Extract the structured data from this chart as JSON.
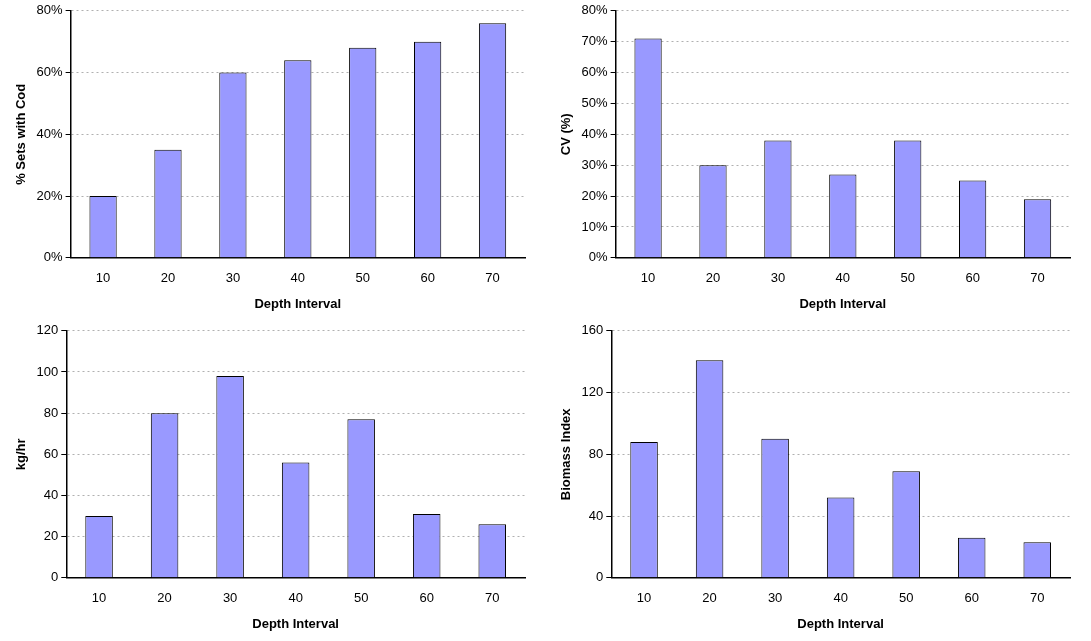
{
  "chart_data": [
    {
      "type": "bar",
      "xlabel": "Depth Interval",
      "ylabel": "% Sets with Cod",
      "categories": [
        "10",
        "20",
        "30",
        "40",
        "50",
        "60",
        "70"
      ],
      "values": [
        20,
        35,
        60,
        64,
        68,
        70,
        76
      ],
      "color": "#9999ff",
      "ylim": [
        0,
        80
      ],
      "yticks": [
        {
          "value": 0,
          "label": "0%"
        },
        {
          "value": 20,
          "label": "20%"
        },
        {
          "value": 40,
          "label": "40%"
        },
        {
          "value": 60,
          "label": "60%"
        },
        {
          "value": 80,
          "label": "80%"
        }
      ],
      "grid": "y",
      "legend": false
    },
    {
      "type": "bar",
      "xlabel": "Depth Interval",
      "ylabel": "CV (%)",
      "categories": [
        "10",
        "20",
        "30",
        "40",
        "50",
        "60",
        "70"
      ],
      "values": [
        71,
        30,
        38,
        27,
        38,
        25,
        19
      ],
      "color": "#9999ff",
      "ylim": [
        0,
        80
      ],
      "yticks": [
        {
          "value": 0,
          "label": "0%"
        },
        {
          "value": 10,
          "label": "10%"
        },
        {
          "value": 20,
          "label": "20%"
        },
        {
          "value": 30,
          "label": "30%"
        },
        {
          "value": 40,
          "label": "40%"
        },
        {
          "value": 50,
          "label": "50%"
        },
        {
          "value": 60,
          "label": "60%"
        },
        {
          "value": 70,
          "label": "70%"
        },
        {
          "value": 80,
          "label": "80%"
        }
      ],
      "grid": "y",
      "legend": false
    },
    {
      "type": "bar",
      "xlabel": "Depth Interval",
      "ylabel": "kg/hr",
      "categories": [
        "10",
        "20",
        "30",
        "40",
        "50",
        "60",
        "70"
      ],
      "values": [
        30,
        80,
        98,
        56,
        77,
        31,
        26
      ],
      "color": "#9999ff",
      "ylim": [
        0,
        120
      ],
      "yticks": [
        0,
        20,
        40,
        60,
        80,
        100,
        120
      ],
      "grid": "y",
      "legend": false
    },
    {
      "type": "bar",
      "xlabel": "Depth Interval",
      "ylabel": "Biomass Index",
      "categories": [
        "10",
        "20",
        "30",
        "40",
        "50",
        "60",
        "70"
      ],
      "values": [
        88,
        141,
        90,
        52,
        69,
        26,
        23
      ],
      "color": "#9999ff",
      "ylim": [
        0,
        160
      ],
      "yticks": [
        0,
        40,
        80,
        120,
        160
      ],
      "grid": "y",
      "legend": false
    }
  ]
}
